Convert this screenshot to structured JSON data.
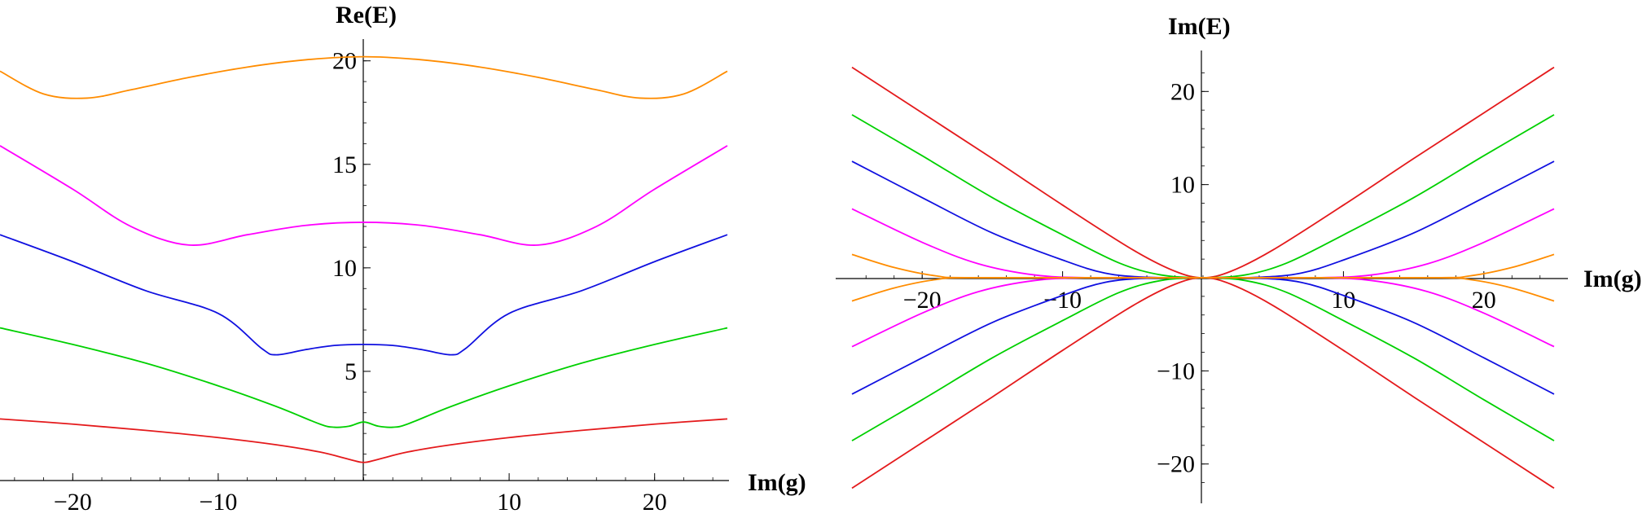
{
  "chart_data": [
    {
      "type": "line",
      "xlabel": "Im(g)",
      "ylabel": "Re(E)",
      "xlim": [
        -25,
        25
      ],
      "ylim": [
        0,
        20.5
      ],
      "x_ticks": [
        -20,
        -10,
        10,
        20
      ],
      "y_ticks": [
        5,
        10,
        15,
        20
      ],
      "grid": false,
      "series": [
        {
          "color": "#e41a1c",
          "x": [
            -25,
            -20,
            -15,
            -10,
            -6,
            -3,
            -1,
            0,
            1,
            3,
            6,
            10,
            15,
            20,
            25
          ],
          "y": [
            2.7,
            2.45,
            2.15,
            1.8,
            1.45,
            1.1,
            0.75,
            0.6,
            0.75,
            1.1,
            1.45,
            1.8,
            2.15,
            2.45,
            2.7
          ]
        },
        {
          "color": "#00d000",
          "x": [
            -25,
            -20,
            -15,
            -10,
            -6,
            -3,
            -2,
            -1,
            0,
            1,
            2,
            3,
            6,
            10,
            15,
            20,
            25
          ],
          "y": [
            7.1,
            6.3,
            5.4,
            4.3,
            3.3,
            2.45,
            2.3,
            2.35,
            2.55,
            2.35,
            2.3,
            2.45,
            3.3,
            4.3,
            5.4,
            6.3,
            7.1
          ]
        },
        {
          "color": "#1010e0",
          "x": [
            -25,
            -20,
            -15,
            -10,
            -7,
            -6,
            -4,
            -2,
            0,
            2,
            4,
            6,
            7,
            10,
            15,
            20,
            25
          ],
          "y": [
            11.6,
            10.3,
            8.9,
            7.8,
            6.1,
            5.8,
            6.05,
            6.25,
            6.3,
            6.25,
            6.05,
            5.8,
            6.1,
            7.8,
            8.9,
            10.3,
            11.6
          ]
        },
        {
          "color": "#ff00ff",
          "x": [
            -25,
            -20,
            -16,
            -12,
            -8,
            -4,
            0,
            4,
            8,
            12,
            16,
            20,
            25
          ],
          "y": [
            15.9,
            13.8,
            12.0,
            11.1,
            11.6,
            12.05,
            12.2,
            12.05,
            11.6,
            11.1,
            12.0,
            13.8,
            15.9
          ]
        },
        {
          "color": "#ff8c00",
          "x": [
            -25,
            -22,
            -19,
            -16,
            -12,
            -8,
            -4,
            0,
            4,
            8,
            12,
            16,
            19,
            22,
            25
          ],
          "y": [
            19.5,
            18.4,
            18.2,
            18.6,
            19.2,
            19.7,
            20.05,
            20.2,
            20.05,
            19.7,
            19.2,
            18.6,
            18.2,
            18.4,
            19.5
          ]
        }
      ]
    },
    {
      "type": "line",
      "xlabel": "Im(g)",
      "ylabel": "Im(E)",
      "xlim": [
        -25,
        25
      ],
      "ylim": [
        -23,
        23
      ],
      "x_ticks": [
        -20,
        -10,
        10,
        20
      ],
      "y_ticks": [
        -20,
        -10,
        10,
        20
      ],
      "grid": false,
      "series": [
        {
          "color": "#e41a1c",
          "x": [
            -25,
            -20,
            -15,
            -10,
            -5,
            -2,
            0,
            2,
            5,
            10,
            15,
            20,
            25
          ],
          "y": [
            22.6,
            17.7,
            12.8,
            7.8,
            3.0,
            0.7,
            0,
            0.7,
            3.0,
            7.8,
            12.8,
            17.7,
            22.6
          ]
        },
        {
          "color": "#e41a1c",
          "x": [
            -25,
            -20,
            -15,
            -10,
            -5,
            -2,
            0,
            2,
            5,
            10,
            15,
            20,
            25
          ],
          "y": [
            -22.6,
            -17.7,
            -12.8,
            -7.8,
            -3.0,
            -0.7,
            0,
            -0.7,
            -3.0,
            -7.8,
            -12.8,
            -17.7,
            -22.6
          ]
        },
        {
          "color": "#00d000",
          "x": [
            -25,
            -20,
            -15,
            -10,
            -6,
            -3,
            0,
            3,
            6,
            10,
            15,
            20,
            25
          ],
          "y": [
            17.5,
            13.1,
            8.6,
            4.6,
            1.6,
            0.3,
            0,
            0.3,
            1.6,
            4.6,
            8.6,
            13.1,
            17.5
          ]
        },
        {
          "color": "#00d000",
          "x": [
            -25,
            -20,
            -15,
            -10,
            -6,
            -3,
            0,
            3,
            6,
            10,
            15,
            20,
            25
          ],
          "y": [
            -17.5,
            -13.1,
            -8.6,
            -4.6,
            -1.6,
            -0.3,
            0,
            -0.3,
            -1.6,
            -4.6,
            -8.6,
            -13.1,
            -17.5
          ]
        },
        {
          "color": "#1010e0",
          "x": [
            -25,
            -20,
            -15,
            -10,
            -7,
            -4,
            0,
            4,
            7,
            10,
            15,
            20,
            25
          ],
          "y": [
            12.5,
            8.6,
            4.8,
            1.9,
            0.5,
            0.05,
            0,
            0.05,
            0.5,
            1.9,
            4.8,
            8.6,
            12.5
          ]
        },
        {
          "color": "#1010e0",
          "x": [
            -25,
            -20,
            -15,
            -10,
            -7,
            -4,
            0,
            4,
            7,
            10,
            15,
            20,
            25
          ],
          "y": [
            -12.5,
            -8.6,
            -4.8,
            -1.9,
            -0.5,
            -0.05,
            0,
            -0.05,
            -0.5,
            -1.9,
            -4.8,
            -8.6,
            -12.5
          ]
        },
        {
          "color": "#ff00ff",
          "x": [
            -25,
            -20,
            -16,
            -12,
            -8,
            0,
            8,
            12,
            16,
            20,
            25
          ],
          "y": [
            7.4,
            3.8,
            1.5,
            0.3,
            0,
            0,
            0,
            0.3,
            1.5,
            3.8,
            7.4
          ]
        },
        {
          "color": "#ff00ff",
          "x": [
            -25,
            -20,
            -16,
            -12,
            -8,
            0,
            8,
            12,
            16,
            20,
            25
          ],
          "y": [
            -7.4,
            -3.8,
            -1.5,
            -0.3,
            0,
            0,
            0,
            -0.3,
            -1.5,
            -3.8,
            -7.4
          ]
        },
        {
          "color": "#ff8c00",
          "x": [
            -25,
            -22,
            -19,
            -16,
            0,
            16,
            19,
            22,
            25
          ],
          "y": [
            2.5,
            1.1,
            0.2,
            0,
            0,
            0,
            0.2,
            1.1,
            2.5
          ]
        },
        {
          "color": "#ff8c00",
          "x": [
            -25,
            -22,
            -19,
            -16,
            0,
            16,
            19,
            22,
            25
          ],
          "y": [
            -2.5,
            -1.1,
            -0.2,
            0,
            0,
            0,
            -0.2,
            -1.1,
            -2.5
          ]
        }
      ]
    }
  ],
  "tick_text": {
    "left_x": [
      "−20",
      "−10",
      "10",
      "20"
    ],
    "left_y": [
      "5",
      "10",
      "15",
      "20"
    ],
    "right_x": [
      "−20",
      "−10",
      "10",
      "20"
    ],
    "right_y": [
      "−20",
      "−10",
      "10",
      "20"
    ]
  }
}
